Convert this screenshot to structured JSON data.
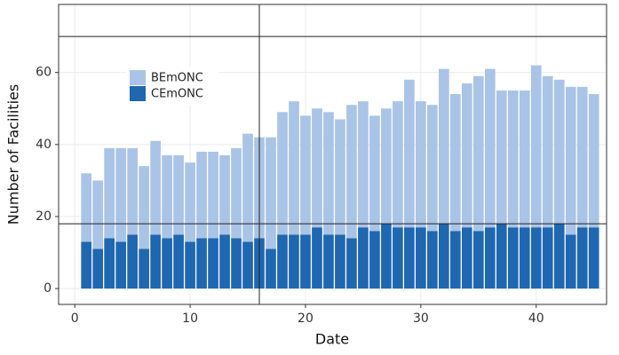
{
  "chart_data": {
    "type": "bar",
    "stacked": true,
    "x_label": "Date",
    "y_label": "Number of Facilities",
    "x": [
      1,
      2,
      3,
      4,
      5,
      6,
      7,
      8,
      9,
      10,
      11,
      12,
      13,
      14,
      15,
      16,
      17,
      18,
      19,
      20,
      21,
      22,
      23,
      24,
      25,
      26,
      27,
      28,
      29,
      30,
      31,
      32,
      33,
      34,
      35,
      36,
      37,
      38,
      39,
      40,
      41,
      42,
      43,
      44,
      45
    ],
    "series": [
      {
        "name": "CEmONC",
        "color": "#1f67b1",
        "values": [
          13,
          11,
          14,
          13,
          15,
          11,
          15,
          14,
          15,
          13,
          14,
          14,
          15,
          14,
          13,
          14,
          11,
          15,
          15,
          15,
          17,
          15,
          15,
          14,
          17,
          16,
          18,
          17,
          17,
          17,
          16,
          18,
          16,
          17,
          16,
          17,
          18,
          17,
          17,
          17,
          17,
          18,
          15,
          17,
          17
        ]
      },
      {
        "name": "BEmONC",
        "color": "#a9c4e6",
        "values": [
          19,
          19,
          25,
          26,
          24,
          23,
          26,
          23,
          22,
          22,
          24,
          24,
          22,
          25,
          30,
          28,
          31,
          34,
          37,
          33,
          33,
          34,
          32,
          37,
          35,
          32,
          32,
          35,
          41,
          35,
          35,
          43,
          38,
          40,
          43,
          44,
          37,
          38,
          38,
          45,
          42,
          40,
          41,
          39,
          37
        ]
      }
    ],
    "xlim": [
      -1.4,
      46.1
    ],
    "xticks": [
      0,
      10,
      20,
      30,
      40
    ],
    "ylim": [
      -4.4,
      78.9
    ],
    "yticks": [
      0,
      20,
      40,
      60
    ],
    "vlines": [
      16
    ],
    "hlines": [
      18,
      70
    ],
    "grid": true,
    "legend": "top-left"
  }
}
